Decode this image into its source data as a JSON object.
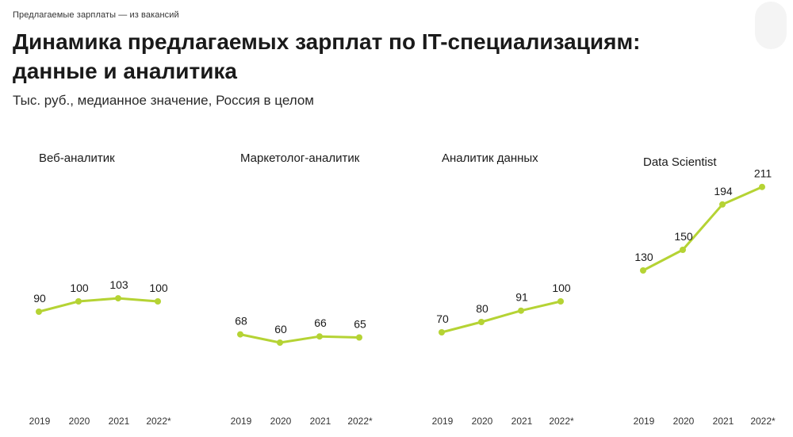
{
  "header": {
    "kicker": "Предлагаемые зарплаты — из вакансий",
    "title": "Динамика предлагаемых зарплат по IT-специализациям: данные и аналитика",
    "subtitle": "Тыс. руб., медианное значение, Россия в целом"
  },
  "colors": {
    "line": "#b5d334",
    "text": "#1a1a1a"
  },
  "chart_data": [
    {
      "type": "line",
      "title": "Веб-аналитик",
      "categories": [
        "2019",
        "2020",
        "2021",
        "2022*"
      ],
      "series": [
        {
          "values": [
            90,
            100,
            103,
            100
          ]
        }
      ],
      "ylim": [
        0,
        220
      ],
      "grid": false
    },
    {
      "type": "line",
      "title": "Маркетолог-аналитик",
      "categories": [
        "2019",
        "2020",
        "2021",
        "2022*"
      ],
      "series": [
        {
          "values": [
            68,
            60,
            66,
            65
          ]
        }
      ],
      "ylim": [
        0,
        220
      ],
      "grid": false
    },
    {
      "type": "line",
      "title": "Аналитик данных",
      "categories": [
        "2019",
        "2020",
        "2021",
        "2022*"
      ],
      "series": [
        {
          "values": [
            70,
            80,
            91,
            100
          ]
        }
      ],
      "ylim": [
        0,
        220
      ],
      "grid": false
    },
    {
      "type": "line",
      "title": "Data Scientist",
      "categories": [
        "2019",
        "2020",
        "2021",
        "2022*"
      ],
      "series": [
        {
          "values": [
            130,
            150,
            194,
            211
          ]
        }
      ],
      "ylim": [
        0,
        220
      ],
      "grid": false
    }
  ]
}
